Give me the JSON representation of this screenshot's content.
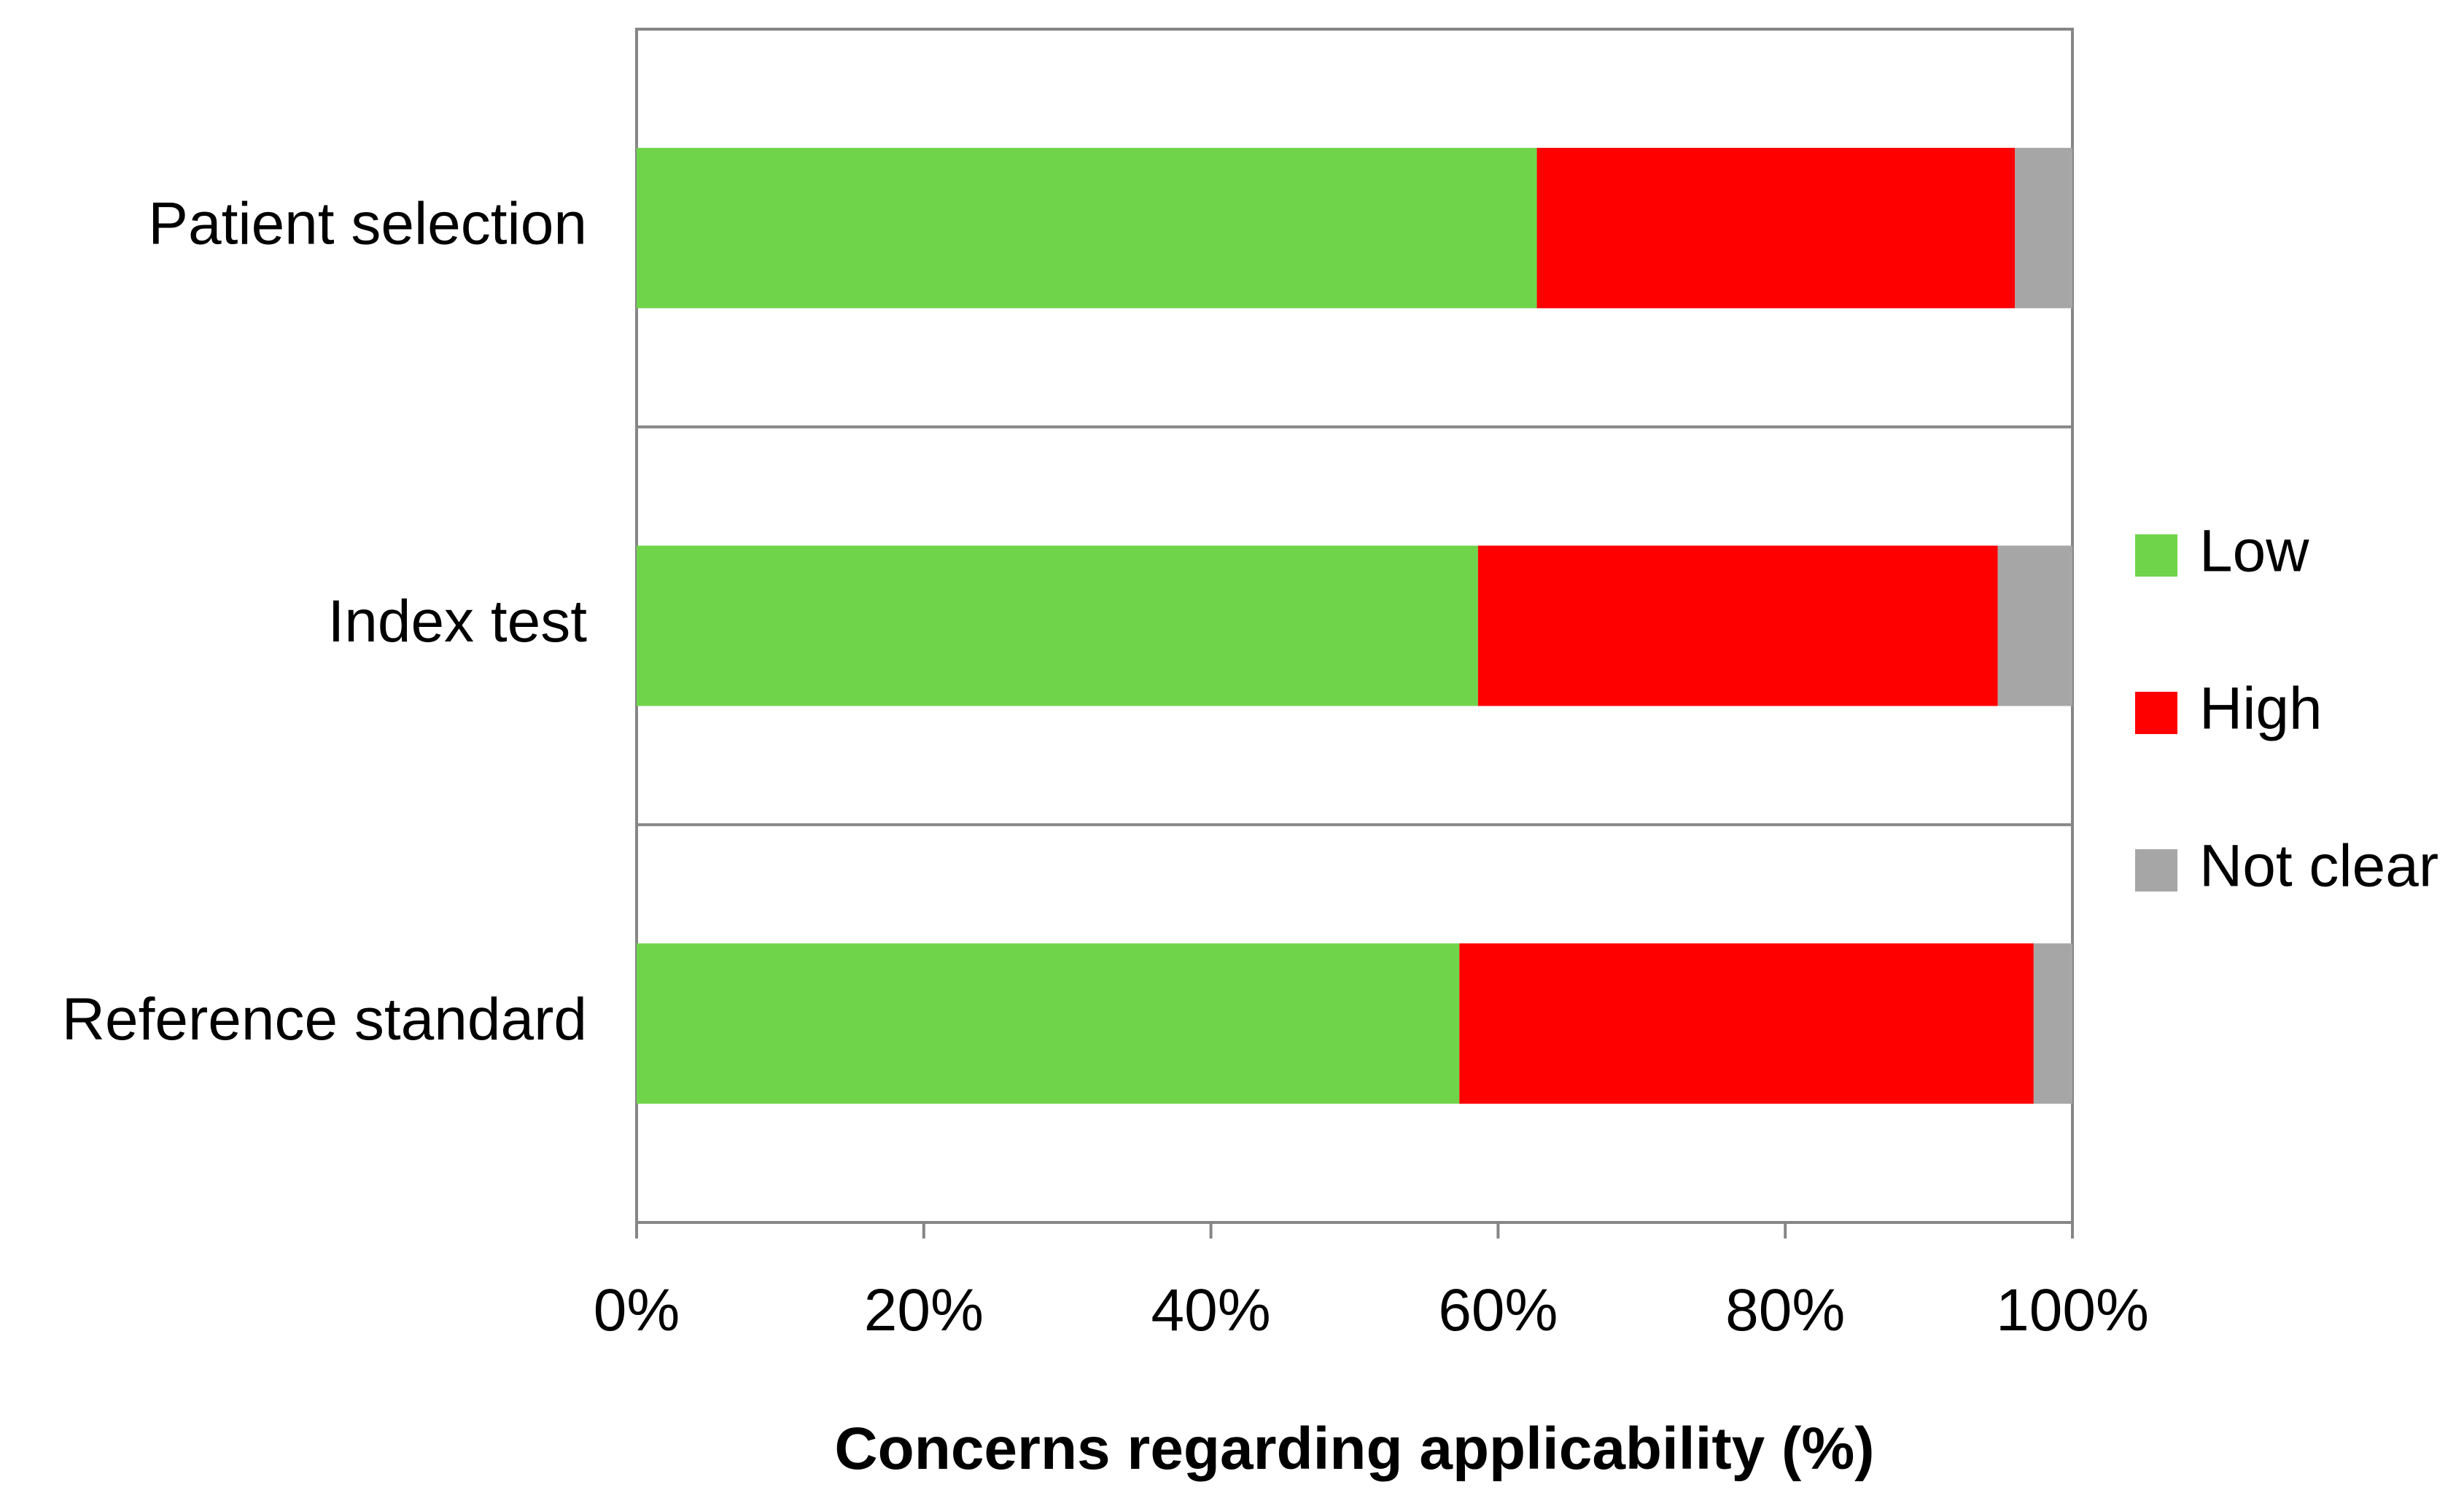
{
  "chart_data": {
    "type": "bar",
    "orientation": "horizontal",
    "stacked": true,
    "title": "",
    "xlabel": "Concerns regarding applicability (%)",
    "ylabel": "",
    "xlim": [
      0,
      100
    ],
    "x_ticks": [
      "0%",
      "20%",
      "40%",
      "60%",
      "80%",
      "100%"
    ],
    "x_tick_values": [
      0,
      20,
      40,
      60,
      80,
      100
    ],
    "categories": [
      "Patient selection",
      "Index test",
      "Reference standard"
    ],
    "series": [
      {
        "name": "Low",
        "color": "#70d44b",
        "values": [
          62.7,
          58.6,
          57.3
        ]
      },
      {
        "name": "High",
        "color": "#ff0000",
        "values": [
          33.3,
          36.2,
          40.0
        ]
      },
      {
        "name": "Not clear",
        "color": "#a6a6a6",
        "values": [
          4.0,
          5.2,
          2.7
        ]
      }
    ],
    "legend": {
      "position": "right",
      "entries": [
        "Low",
        "High",
        "Not clear"
      ]
    },
    "grid": false,
    "frame_color": "#868686"
  }
}
